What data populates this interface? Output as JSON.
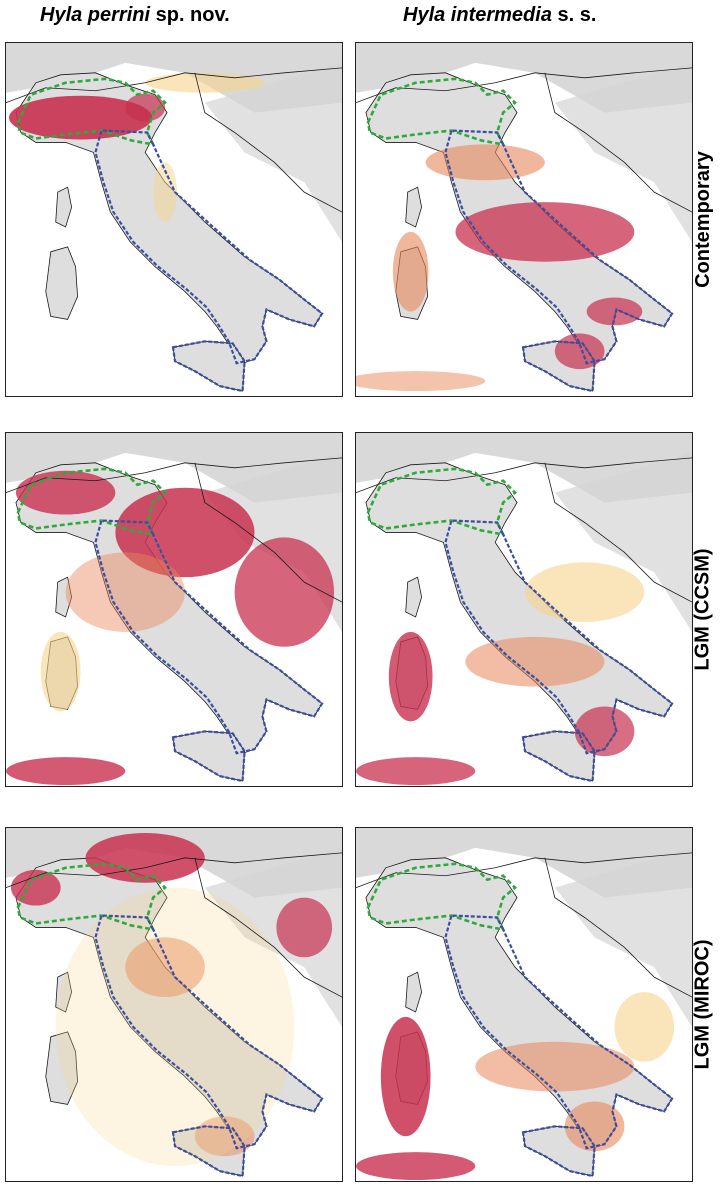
{
  "figure": {
    "columns": [
      {
        "species": "Hyla perrini",
        "suffix": " sp. nov."
      },
      {
        "species": "Hyla intermedia",
        "suffix": " s. s."
      }
    ],
    "rows": [
      {
        "label": "Contemporary"
      },
      {
        "label": "LGM (CCSM)"
      },
      {
        "label": "LGM (MIROC)"
      }
    ]
  },
  "colors": {
    "suitability_high": "#c8314f",
    "suitability_mid": "#e8875a",
    "suitability_low": "#f6d38c",
    "terrain": "#bfbfbf",
    "northern_range_outline": "#2eaa3c",
    "southern_range_outline": "#3a4fa0",
    "borders": "#1a1a1a"
  }
}
